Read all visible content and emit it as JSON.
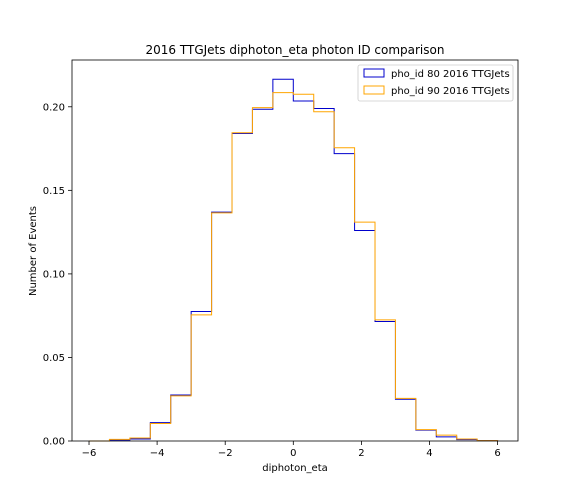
{
  "chart_data": {
    "type": "histogram",
    "title": "2016 TTGJets diphoton_eta photon ID comparison",
    "xlabel": "diphoton_eta",
    "ylabel": "Number of Events",
    "xlim": [
      -6.5,
      6.6
    ],
    "ylim": [
      0,
      0.228
    ],
    "xticks": [
      -6,
      -4,
      -2,
      0,
      2,
      4,
      6
    ],
    "xtick_labels": [
      "−6",
      "−4",
      "−2",
      "0",
      "2",
      "4",
      "6"
    ],
    "yticks": [
      0.0,
      0.05,
      0.1,
      0.15,
      0.2
    ],
    "ytick_labels": [
      "0.00",
      "0.05",
      "0.10",
      "0.15",
      "0.20"
    ],
    "bin_edges": [
      -6.0,
      -5.4,
      -4.8,
      -4.2,
      -3.6,
      -3.0,
      -2.4,
      -1.8,
      -1.2,
      -0.6,
      0.0,
      0.6,
      1.2,
      1.8,
      2.4,
      3.0,
      3.6,
      4.2,
      4.8,
      5.4,
      6.0
    ],
    "legend_position": "top-right",
    "grid": false,
    "series": [
      {
        "name": "pho_id 80 2016 TTGJets",
        "color": "#0000cc",
        "values": [
          0.0,
          0.0006,
          0.0012,
          0.011,
          0.0275,
          0.0775,
          0.137,
          0.184,
          0.1985,
          0.2165,
          0.2035,
          0.199,
          0.172,
          0.126,
          0.0715,
          0.025,
          0.0065,
          0.0025,
          0.0008,
          0.0003
        ]
      },
      {
        "name": "pho_id 90 2016 TTGJets",
        "color": "#ffa500",
        "values": [
          0.0,
          0.001,
          0.0018,
          0.0105,
          0.027,
          0.0755,
          0.1365,
          0.1845,
          0.1995,
          0.2085,
          0.2075,
          0.197,
          0.1755,
          0.131,
          0.0725,
          0.0255,
          0.0068,
          0.0035,
          0.0012,
          0.0002
        ]
      }
    ]
  }
}
